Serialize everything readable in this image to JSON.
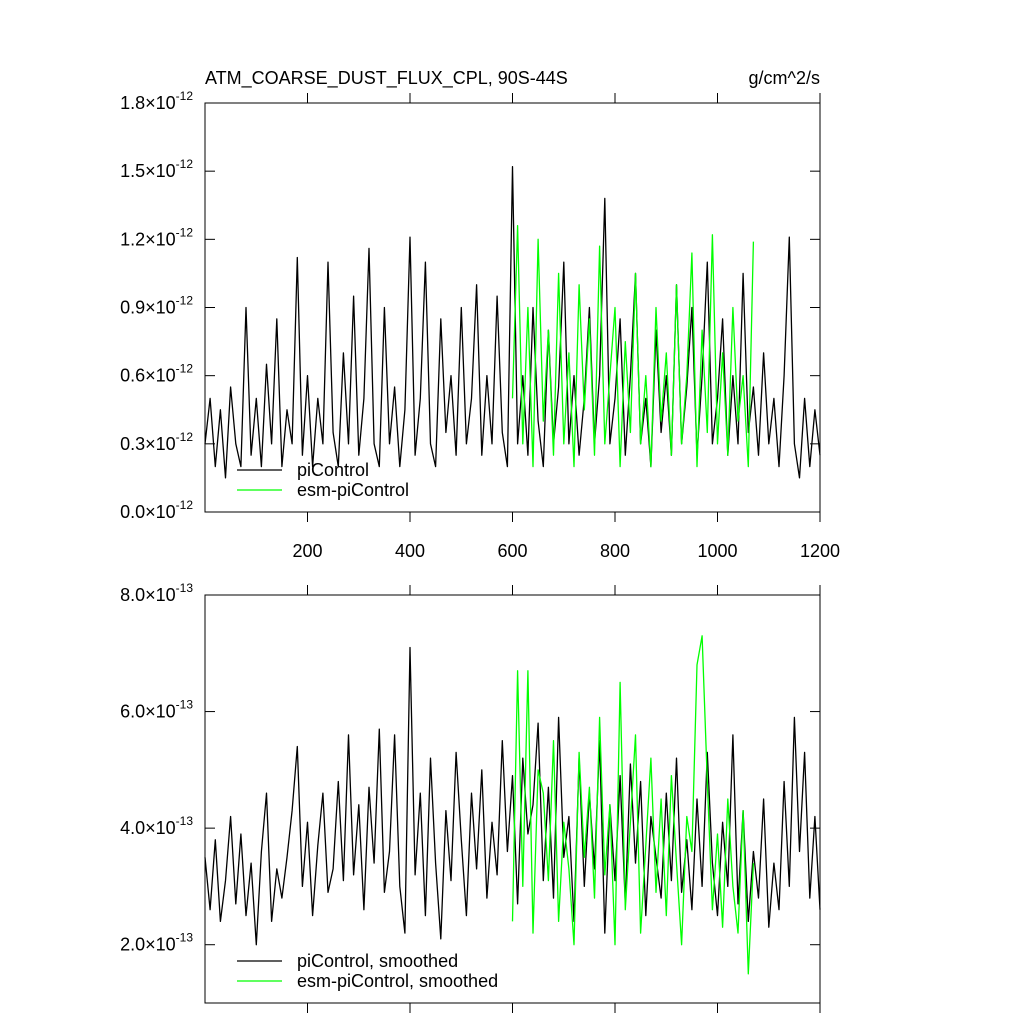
{
  "chart_data": [
    {
      "type": "line",
      "title": "ATM_COARSE_DUST_FLUX_CPL, 90S-44S",
      "units": "g/cm^2/s",
      "x": [
        0,
        10,
        20,
        30,
        40,
        50,
        60,
        70,
        80,
        90,
        100,
        110,
        120,
        130,
        140,
        150,
        160,
        170,
        180,
        190,
        200,
        210,
        220,
        230,
        240,
        250,
        260,
        270,
        280,
        290,
        300,
        310,
        320,
        330,
        340,
        350,
        360,
        370,
        380,
        390,
        400,
        410,
        420,
        430,
        440,
        450,
        460,
        470,
        480,
        490,
        500,
        510,
        520,
        530,
        540,
        550,
        560,
        570,
        580,
        590,
        600,
        610,
        620,
        630,
        640,
        650,
        660,
        670,
        680,
        690,
        700,
        710,
        720,
        730,
        740,
        750,
        760,
        770,
        780,
        790,
        800,
        810,
        820,
        830,
        840,
        850,
        860,
        870,
        880,
        890,
        900,
        910,
        920,
        930,
        940,
        950,
        960,
        970,
        980,
        990,
        1000,
        1010,
        1020,
        1030,
        1040,
        1050,
        1060,
        1070,
        1080,
        1090,
        1100,
        1110,
        1120,
        1130,
        1140,
        1150,
        1160,
        1170,
        1180,
        1190,
        1200
      ],
      "series": [
        {
          "name": "piControl",
          "color": "#000000",
          "values": [
            3e-13,
            5e-13,
            2e-13,
            4.5e-13,
            1.5e-13,
            5.5e-13,
            3e-13,
            2e-13,
            9e-13,
            2.5e-13,
            5e-13,
            2e-13,
            6.5e-13,
            3e-13,
            8.5e-13,
            2e-13,
            4.5e-13,
            3e-13,
            1.12e-12,
            2.5e-13,
            6e-13,
            2e-13,
            5e-13,
            3e-13,
            1.1e-12,
            3.5e-13,
            2e-13,
            7e-13,
            3e-13,
            9.5e-13,
            2.5e-13,
            5e-13,
            1.16e-12,
            3e-13,
            2e-13,
            9e-13,
            3e-13,
            5.5e-13,
            2e-13,
            4.5e-13,
            1.21e-12,
            2.5e-13,
            5e-13,
            1.1e-12,
            3e-13,
            2e-13,
            8.5e-13,
            3.5e-13,
            6e-13,
            2.5e-13,
            9e-13,
            3e-13,
            5e-13,
            1e-12,
            2.5e-13,
            6e-13,
            3e-13,
            9.5e-13,
            3.5e-13,
            2e-13,
            1.52e-12,
            3e-13,
            6e-13,
            2.5e-13,
            9e-13,
            4e-13,
            2e-13,
            8e-13,
            3e-13,
            5.5e-13,
            1.1e-12,
            3e-13,
            6e-13,
            2.5e-13,
            5e-13,
            9e-13,
            3e-13,
            6e-13,
            1.38e-12,
            3e-13,
            5e-13,
            8.5e-13,
            2.5e-13,
            6e-13,
            1.05e-12,
            3e-13,
            5e-13,
            2e-13,
            8e-13,
            3.5e-13,
            6e-13,
            2.5e-13,
            1e-12,
            3e-13,
            5.5e-13,
            9e-13,
            2.5e-13,
            6e-13,
            1.1e-12,
            3e-13,
            5e-13,
            8.5e-13,
            2.5e-13,
            6e-13,
            3e-13,
            1.05e-12,
            3.5e-13,
            5.5e-13,
            2.5e-13,
            7e-13,
            3e-13,
            5e-13,
            2e-13,
            6e-13,
            1.21e-12,
            3e-13,
            1.5e-13,
            5e-13,
            2e-13,
            4.5e-13,
            2.5e-13
          ]
        },
        {
          "name": "esm-piControl",
          "color": "#00ff00",
          "x": [
            600,
            610,
            620,
            630,
            640,
            650,
            660,
            670,
            680,
            690,
            700,
            710,
            720,
            730,
            740,
            750,
            760,
            770,
            780,
            790,
            800,
            810,
            820,
            830,
            840,
            850,
            860,
            870,
            880,
            890,
            900,
            910,
            920,
            930,
            940,
            950,
            960,
            970,
            980,
            990,
            1000,
            1010,
            1020,
            1030,
            1040,
            1050,
            1060,
            1070
          ],
          "values": [
            5e-13,
            1.26e-12,
            3e-13,
            9e-13,
            2e-13,
            1.2e-12,
            4e-13,
            8e-13,
            2.5e-13,
            1.05e-12,
            3e-13,
            7e-13,
            2e-13,
            1e-12,
            4.5e-13,
            8.5e-13,
            2.5e-13,
            1.17e-12,
            3e-13,
            6e-13,
            9e-13,
            2e-13,
            7.5e-13,
            3.5e-13,
            1.05e-12,
            3e-13,
            6e-13,
            2e-13,
            9e-13,
            4e-13,
            7e-13,
            2.5e-13,
            1e-12,
            3e-13,
            6e-13,
            1.14e-12,
            2e-13,
            8e-13,
            3.5e-13,
            1.22e-12,
            3e-13,
            7e-13,
            2.5e-13,
            9e-13,
            4e-13,
            6e-13,
            2e-13,
            1.19e-12
          ]
        }
      ],
      "xlim": [
        0,
        1200
      ],
      "xticks": [
        200,
        400,
        600,
        800,
        1000,
        1200
      ],
      "ylim": [
        0,
        1.8e-12
      ],
      "yticks": [
        {
          "value": 0,
          "label": "0.0×10",
          "exponent": "-12"
        },
        {
          "value": 3e-13,
          "label": "0.3×10",
          "exponent": "-12"
        },
        {
          "value": 6e-13,
          "label": "0.6×10",
          "exponent": "-12"
        },
        {
          "value": 9e-13,
          "label": "0.9×10",
          "exponent": "-12"
        },
        {
          "value": 1.2e-12,
          "label": "1.2×10",
          "exponent": "-12"
        },
        {
          "value": 1.5e-12,
          "label": "1.5×10",
          "exponent": "-12"
        },
        {
          "value": 1.8e-12,
          "label": "1.8×10",
          "exponent": "-12"
        }
      ],
      "legend": "lower left"
    },
    {
      "type": "line",
      "x": [
        0,
        10,
        20,
        30,
        40,
        50,
        60,
        70,
        80,
        90,
        100,
        110,
        120,
        130,
        140,
        150,
        160,
        170,
        180,
        190,
        200,
        210,
        220,
        230,
        240,
        250,
        260,
        270,
        280,
        290,
        300,
        310,
        320,
        330,
        340,
        350,
        360,
        370,
        380,
        390,
        400,
        410,
        420,
        430,
        440,
        450,
        460,
        470,
        480,
        490,
        500,
        510,
        520,
        530,
        540,
        550,
        560,
        570,
        580,
        590,
        600,
        610,
        620,
        630,
        640,
        650,
        660,
        670,
        680,
        690,
        700,
        710,
        720,
        730,
        740,
        750,
        760,
        770,
        780,
        790,
        800,
        810,
        820,
        830,
        840,
        850,
        860,
        870,
        880,
        890,
        900,
        910,
        920,
        930,
        940,
        950,
        960,
        970,
        980,
        990,
        1000,
        1010,
        1020,
        1030,
        1040,
        1050,
        1060,
        1070,
        1080,
        1090,
        1100,
        1110,
        1120,
        1130,
        1140,
        1150,
        1160,
        1170,
        1180,
        1190,
        1200
      ],
      "series": [
        {
          "name": "piControl, smoothed",
          "color": "#000000",
          "values": [
            3.5e-13,
            2.6e-13,
            3.8e-13,
            2.4e-13,
            3.1e-13,
            4.2e-13,
            2.7e-13,
            3.9e-13,
            2.5e-13,
            3.4e-13,
            2e-13,
            3.6e-13,
            4.6e-13,
            2.4e-13,
            3.3e-13,
            2.8e-13,
            3.5e-13,
            4.3e-13,
            5.4e-13,
            3e-13,
            4.1e-13,
            2.5e-13,
            3.7e-13,
            4.6e-13,
            2.9e-13,
            3.3e-13,
            4.8e-13,
            3.1e-13,
            5.6e-13,
            3.2e-13,
            4.4e-13,
            2.6e-13,
            4.7e-13,
            3.4e-13,
            5.7e-13,
            2.9e-13,
            3.6e-13,
            5.6e-13,
            3e-13,
            2.2e-13,
            7.1e-13,
            3.2e-13,
            4.6e-13,
            2.5e-13,
            5.2e-13,
            3.4e-13,
            2.1e-13,
            4.3e-13,
            3.1e-13,
            5.3e-13,
            3.8e-13,
            2.5e-13,
            4.6e-13,
            3.3e-13,
            5e-13,
            2.8e-13,
            4.1e-13,
            3.2e-13,
            5.5e-13,
            3.6e-13,
            4.9e-13,
            2.7e-13,
            5.2e-13,
            3.9e-13,
            4.4e-13,
            5.8e-13,
            3.1e-13,
            4.7e-13,
            2.8e-13,
            5.9e-13,
            3.5e-13,
            4.2e-13,
            2.4e-13,
            5.2e-13,
            3e-13,
            4.6e-13,
            3.3e-13,
            5.5e-13,
            2.2e-13,
            4.4e-13,
            3.1e-13,
            4.9e-13,
            2.7e-13,
            5.1e-13,
            3.4e-13,
            4.8e-13,
            2.5e-13,
            4.2e-13,
            3.5e-13,
            2.8e-13,
            4.6e-13,
            3.1e-13,
            5.2e-13,
            2.9e-13,
            3.8e-13,
            2.6e-13,
            4.5e-13,
            3e-13,
            5.3e-13,
            3.4e-13,
            2.5e-13,
            4.1e-13,
            3e-13,
            5.6e-13,
            2.7e-13,
            4.3e-13,
            2.4e-13,
            3.6e-13,
            2.8e-13,
            4.5e-13,
            2.3e-13,
            3.4e-13,
            2.6e-13,
            4.8e-13,
            3e-13,
            5.9e-13,
            3.6e-13,
            5.3e-13,
            2.8e-13,
            4.2e-13,
            2.6e-13
          ]
        },
        {
          "name": "esm-piControl, smoothed",
          "color": "#00ff00",
          "x": [
            600,
            610,
            620,
            630,
            640,
            650,
            660,
            670,
            680,
            690,
            700,
            710,
            720,
            730,
            740,
            750,
            760,
            770,
            780,
            790,
            800,
            810,
            820,
            830,
            840,
            850,
            860,
            870,
            880,
            890,
            900,
            910,
            920,
            930,
            940,
            950,
            960,
            970,
            980,
            990,
            1000,
            1010,
            1020,
            1030,
            1040,
            1050,
            1060,
            1070
          ],
          "values": [
            2.4e-13,
            6.7e-13,
            3e-13,
            6.7e-13,
            2.2e-13,
            5e-13,
            4.6e-13,
            3.1e-13,
            5.5e-13,
            2.4e-13,
            4.1e-13,
            3.3e-13,
            2e-13,
            5.3e-13,
            3.5e-13,
            4.7e-13,
            2.8e-13,
            5.9e-13,
            3.2e-13,
            4.4e-13,
            2e-13,
            6.5e-13,
            2.6e-13,
            4.1e-13,
            5.6e-13,
            2.2e-13,
            3.7e-13,
            5.2e-13,
            2.9e-13,
            4.5e-13,
            2.5e-13,
            4.9e-13,
            3.4e-13,
            2e-13,
            4.2e-13,
            3.6e-13,
            6.8e-13,
            7.3e-13,
            4.8e-13,
            2.6e-13,
            3.9e-13,
            2.3e-13,
            4.5e-13,
            3e-13,
            2.2e-13,
            4.3e-13,
            1.5e-13,
            3.4e-13
          ]
        }
      ],
      "xlim": [
        0,
        1200
      ],
      "xticks": [
        200,
        400,
        600,
        800,
        1000,
        1200
      ],
      "ylim": [
        1e-13,
        8e-13
      ],
      "yticks": [
        {
          "value": 2e-13,
          "label": "2.0×10",
          "exponent": "-13"
        },
        {
          "value": 4e-13,
          "label": "4.0×10",
          "exponent": "-13"
        },
        {
          "value": 6e-13,
          "label": "6.0×10",
          "exponent": "-13"
        },
        {
          "value": 8e-13,
          "label": "8.0×10",
          "exponent": "-13"
        }
      ],
      "legend": "lower left"
    }
  ]
}
